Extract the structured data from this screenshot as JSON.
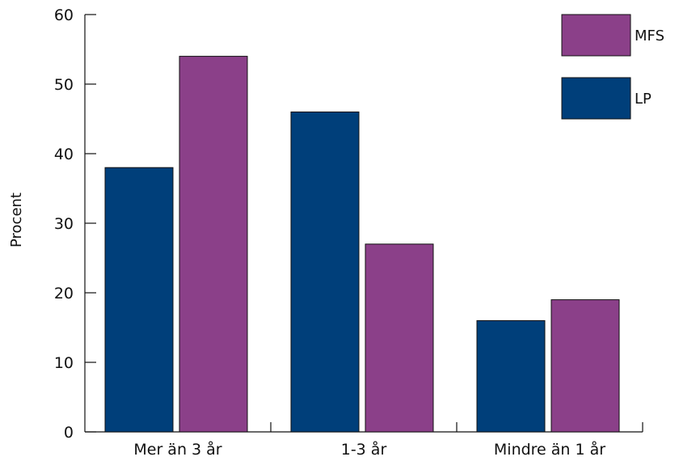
{
  "chart_data": {
    "type": "bar",
    "categories": [
      "Mer än 3 år",
      "1-3 år",
      "Mindre än 1 år"
    ],
    "series": [
      {
        "name": "LP",
        "color": "#003f7a",
        "values": [
          38,
          46,
          16
        ]
      },
      {
        "name": "MFS",
        "color": "#8b4089",
        "values": [
          54,
          27,
          19
        ]
      }
    ],
    "ylabel": "Procent",
    "xlabel": "",
    "ylim": [
      0,
      60
    ],
    "yticks": [
      0,
      10,
      20,
      30,
      40,
      50,
      60
    ],
    "legend": {
      "placement": "top-right",
      "order": [
        "MFS",
        "LP"
      ]
    },
    "grid": false
  }
}
